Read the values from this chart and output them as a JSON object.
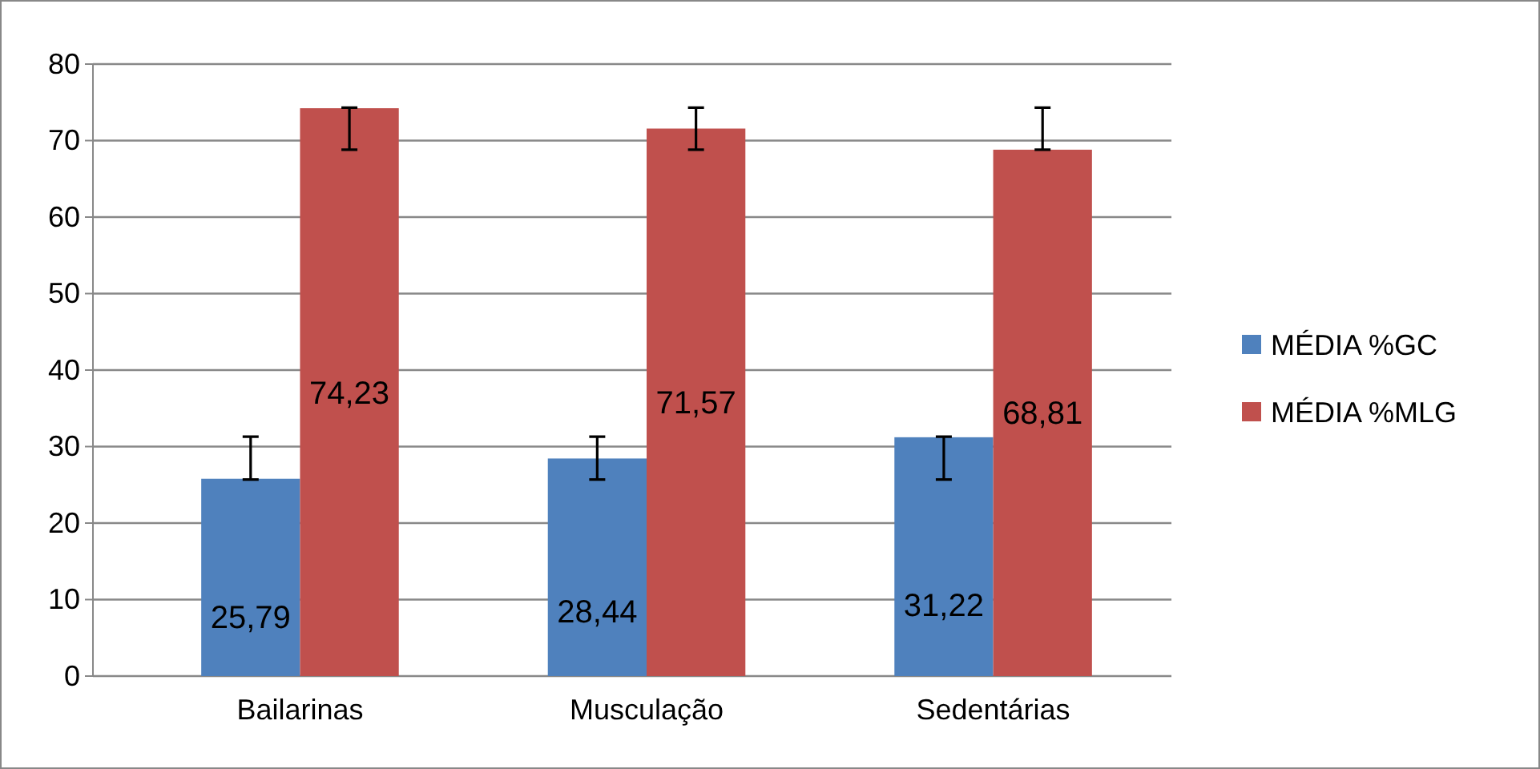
{
  "chart_data": {
    "type": "bar",
    "categories": [
      "Bailarinas",
      "Musculação",
      "Sedentárias"
    ],
    "series": [
      {
        "name": "MÉDIA %GC",
        "color": "#4f81bd",
        "values": [
          25.79,
          28.44,
          31.22
        ],
        "value_labels": [
          "25,79",
          "28,44",
          "31,22"
        ],
        "errors": [
          [
            25.7,
            31.3
          ],
          [
            25.7,
            31.3
          ],
          [
            25.7,
            31.3
          ]
        ]
      },
      {
        "name": "MÉDIA %MLG",
        "color": "#c0504d",
        "values": [
          74.23,
          71.57,
          68.81
        ],
        "value_labels": [
          "74,23",
          "71,57",
          "68,81"
        ],
        "errors": [
          [
            68.8,
            74.3
          ],
          [
            68.8,
            74.3
          ],
          [
            68.8,
            74.3
          ]
        ]
      }
    ],
    "ylim": [
      0,
      80
    ],
    "yticks": [
      0,
      10,
      20,
      30,
      40,
      50,
      60,
      70,
      80
    ],
    "grid": "y",
    "legend": "right"
  }
}
